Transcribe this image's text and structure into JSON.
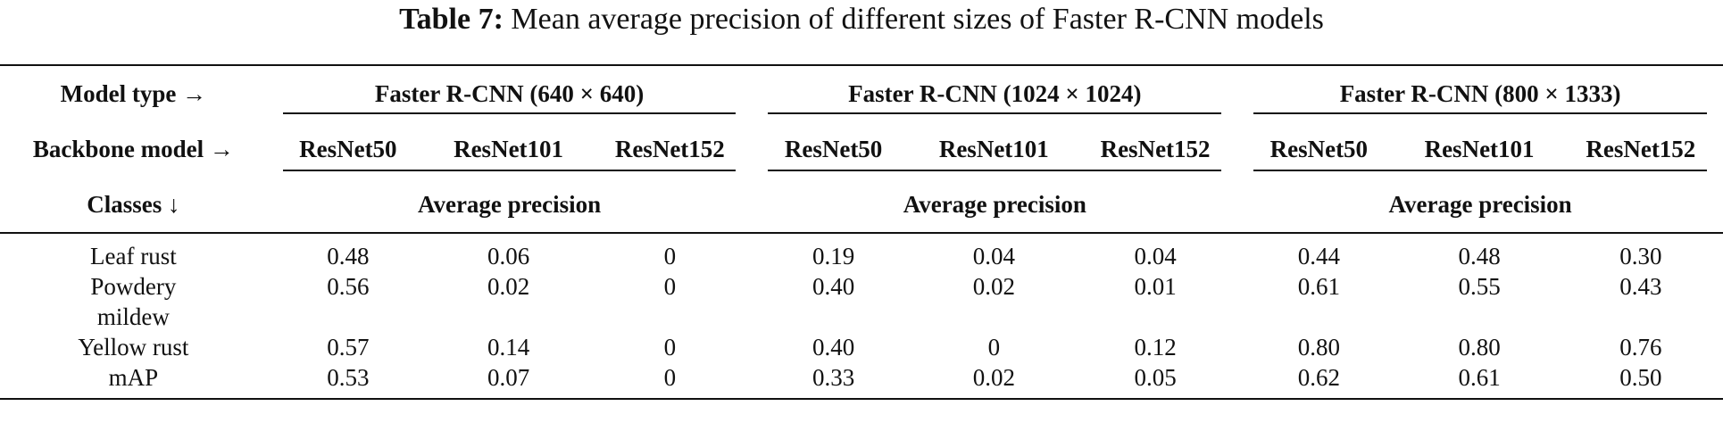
{
  "caption": {
    "label": "Table 7:",
    "text": "Mean average precision of different sizes of Faster R-CNN models"
  },
  "header": {
    "model_type_label": "Model type →",
    "backbone_label": "Backbone model →",
    "classes_label": "Classes ↓",
    "groups": [
      "Faster R-CNN (640 × 640)",
      "Faster R-CNN (1024 × 1024)",
      "Faster R-CNN (800 × 1333)"
    ],
    "backbones": [
      "ResNet50",
      "ResNet101",
      "ResNet152",
      "ResNet50",
      "ResNet101",
      "ResNet152",
      "ResNet50",
      "ResNet101",
      "ResNet152"
    ],
    "metric_labels": [
      "Average precision",
      "Average precision",
      "Average precision"
    ]
  },
  "rows": [
    {
      "label": "Leaf rust",
      "values": [
        "0.48",
        "0.06",
        "0",
        "0.19",
        "0.04",
        "0.04",
        "0.44",
        "0.48",
        "0.30"
      ]
    },
    {
      "label": "Powdery mildew",
      "values": [
        "0.56",
        "0.02",
        "0",
        "0.40",
        "0.02",
        "0.01",
        "0.61",
        "0.55",
        "0.43"
      ]
    },
    {
      "label": "Yellow rust",
      "values": [
        "0.57",
        "0.14",
        "0",
        "0.40",
        "0",
        "0.12",
        "0.80",
        "0.80",
        "0.76"
      ]
    },
    {
      "label": "mAP",
      "values": [
        "0.53",
        "0.07",
        "0",
        "0.33",
        "0.02",
        "0.05",
        "0.62",
        "0.61",
        "0.50"
      ]
    }
  ]
}
